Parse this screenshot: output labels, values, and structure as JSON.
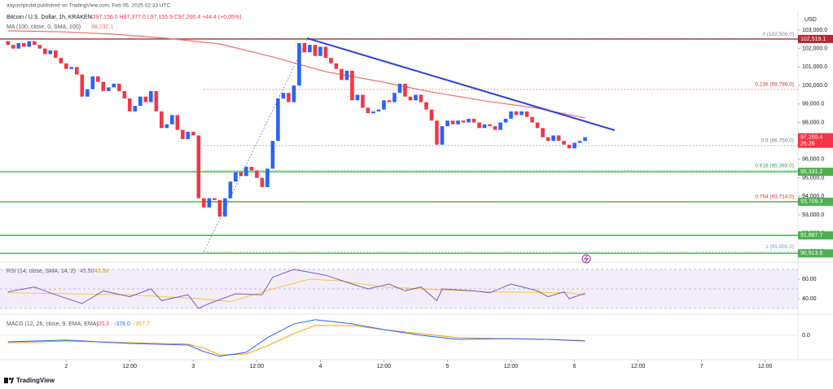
{
  "header": {
    "publisher": "aayushjindal published on TradingView.com, Feb 06, 2025 02:33 UTC",
    "symbol": "Bitcoin / U.S. Dollar, 1h, KRAKEN",
    "ohlc": "O97,156.0 H97,377.0 L97,155.9 C97,200.4 +44.4 (+0.05%)",
    "ma_label": "MA (100, close, 0, SMA, 100)",
    "ma_value": "98,232.1"
  },
  "chart_data": {
    "type": "candlestick",
    "currency": "USD",
    "xlim": [
      -1.5,
      149.2
    ],
    "xticks": [
      {
        "value": 11,
        "label": "2"
      },
      {
        "value": 23,
        "label": "12:00"
      },
      {
        "value": 35,
        "label": "3"
      },
      {
        "value": 47,
        "label": "12:00"
      },
      {
        "value": 59,
        "label": "4"
      },
      {
        "value": 71,
        "label": "12:00"
      },
      {
        "value": 83,
        "label": "5"
      },
      {
        "value": 95,
        "label": "12:00"
      },
      {
        "value": 107,
        "label": "6"
      },
      {
        "value": 119,
        "label": "12:00"
      },
      {
        "value": 131,
        "label": "7"
      },
      {
        "value": 143,
        "label": "12:00"
      }
    ],
    "ylim": [
      90500,
      104000
    ],
    "yticks": [
      {
        "value": 91000,
        "label": "91,000.0"
      },
      {
        "value": 92000,
        "label": "92,000.0"
      },
      {
        "value": 93000,
        "label": "93,000.0"
      },
      {
        "value": 94000,
        "label": "94,000.0"
      },
      {
        "value": 95000,
        "label": "95,000.0"
      },
      {
        "value": 96000,
        "label": "96,000.0"
      },
      {
        "value": 97000,
        "label": "97,000.0"
      },
      {
        "value": 98000,
        "label": "98,000.0"
      },
      {
        "value": 99000,
        "label": "99,000.0"
      },
      {
        "value": 100000,
        "label": "100,000.0"
      },
      {
        "value": 101000,
        "label": "101,000.0"
      },
      {
        "value": 102000,
        "label": "102,000.0"
      },
      {
        "value": 103000,
        "label": "103,000.0"
      }
    ],
    "up_color": "#2962ff",
    "down_color": "#f23645",
    "open": 102400,
    "close": [
      102200,
      102000,
      102300,
      102100,
      102400,
      102200,
      102000,
      101700,
      101900,
      101500,
      101200,
      100900,
      101000,
      100600,
      99400,
      99800,
      100500,
      100200,
      99700,
      99900,
      100100,
      99700,
      99300,
      98600,
      98900,
      99400,
      99100,
      99700,
      98600,
      97700,
      97900,
      98400,
      97600,
      97100,
      97500,
      97300,
      93900,
      93400,
      93900,
      93800,
      92900,
      93900,
      94800,
      95300,
      95100,
      95600,
      95400,
      95000,
      94500,
      95500,
      97000,
      99300,
      99600,
      99100,
      100000,
      102300,
      101800,
      102200,
      101600,
      102100,
      101500,
      101200,
      100900,
      100300,
      100800,
      99200,
      99500,
      98800,
      98500,
      98600,
      98700,
      99200,
      99100,
      99600,
      100100,
      99400,
      99200,
      99500,
      99100,
      98700,
      98100,
      96800,
      97800,
      98100,
      97900,
      98100,
      98000,
      98200,
      98000,
      97700,
      97900,
      97800,
      97600,
      98000,
      98200,
      98600,
      98400,
      98600,
      98300,
      98000,
      97700,
      97200,
      97000,
      97300,
      97000,
      96800,
      96600,
      96900,
      97000,
      97200.4
    ],
    "ma": {
      "color": "#f06d6d",
      "x": [
        0,
        10,
        20,
        30,
        40,
        50,
        60,
        70,
        80,
        90,
        100,
        109
      ],
      "values": [
        102960,
        102910,
        102780,
        102560,
        102250,
        101550,
        100750,
        100230,
        99650,
        99170,
        98770,
        98240
      ]
    },
    "trendline": {
      "color": "#2a3fd6",
      "x": [
        56.5,
        114.6
      ],
      "y": [
        102560,
        97580
      ]
    },
    "levels": [
      {
        "value": 102519.1,
        "label": "102,519.1",
        "color": "#b22833"
      },
      {
        "value": 95331.2,
        "label": "95,331.2",
        "color": "#4caf50"
      },
      {
        "value": 93709.3,
        "label": "93,709.3",
        "color": "#4caf50"
      },
      {
        "value": 91887.7,
        "label": "91,887.7",
        "color": "#4caf50"
      },
      {
        "value": 90913.6,
        "label": "90,913.6",
        "color": "#4caf50"
      }
    ],
    "last_price": {
      "value": 97200.4,
      "label": "97,200.4",
      "countdown": "26:26",
      "color": "#f23645"
    },
    "fib": {
      "x": [
        37,
        56.5
      ],
      "levels": [
        {
          "value": 102500,
          "label": "0 (102,500.0)",
          "color": "#787b86"
        },
        {
          "value": 99786,
          "label": "0.236 (99,786.0)",
          "color": "#c0392b"
        },
        {
          "value": 96750,
          "label": "0.5 (96,750.0)",
          "color": "#787b86"
        },
        {
          "value": 95393,
          "label": "0.618 (95,393.0)",
          "color": "#2e9e5b"
        },
        {
          "value": 93714,
          "label": "0.764 (93,714.0)",
          "color": "#d32f2f"
        },
        {
          "value": 91000,
          "label": "1 (91,000.0)",
          "color": "#5b9bd5"
        }
      ]
    },
    "rsi": {
      "label": "RSI (14, close, SMA, 14, 2)",
      "value_a": "45.50",
      "value_b": "43.58",
      "ylim": [
        25,
        75
      ],
      "yticks": [
        {
          "value": 60,
          "label": "60.00"
        },
        {
          "value": 40,
          "label": "40.00"
        }
      ],
      "band": [
        30,
        70
      ],
      "midline": 50,
      "rsi": {
        "color": "#7e57c2",
        "x": [
          0,
          5,
          9,
          14,
          18,
          23,
          27,
          29,
          34,
          36,
          38,
          43,
          48,
          50,
          54,
          57,
          60,
          65,
          68,
          72,
          75,
          78,
          81,
          82,
          88,
          91,
          95,
          100,
          102,
          105,
          106,
          109
        ],
        "values": [
          47,
          52,
          44,
          35,
          48,
          42,
          50,
          38,
          44,
          30,
          35,
          45,
          44,
          62,
          70,
          67,
          64,
          55,
          50,
          55,
          48,
          52,
          38,
          50,
          48,
          46,
          55,
          48,
          42,
          47,
          40,
          45.5
        ]
      },
      "ma": {
        "color": "#f5c542",
        "x": [
          0,
          23,
          36,
          42,
          50,
          57,
          63,
          71,
          82,
          91,
          106,
          109
        ],
        "values": [
          46,
          44,
          40,
          37,
          50,
          60,
          58,
          52,
          49,
          47,
          46,
          43.58
        ]
      }
    },
    "macd": {
      "label": "MACD (12, 26, close, 9, EMA, EMA)",
      "value_hist": "-20.3",
      "value_macd": "-378.0",
      "value_signal": "-357.7",
      "ylim": [
        -1512,
        1188
      ],
      "yticks": [
        {
          "value": 0,
          "label": "0.0"
        }
      ],
      "macd": {
        "color": "#2962ff",
        "x": [
          0,
          11,
          23,
          34,
          37,
          40,
          45,
          49,
          54,
          58,
          65,
          71,
          78,
          85,
          94,
          102,
          109
        ],
        "values": [
          -430,
          -320,
          -540,
          -650,
          -1080,
          -1400,
          -1130,
          -160,
          760,
          1030,
          760,
          380,
          0,
          -270,
          -220,
          -270,
          -378
        ]
      },
      "signal": {
        "color": "#ff9800",
        "x": [
          0,
          11,
          23,
          34,
          37,
          40,
          45,
          49,
          54,
          58,
          65,
          71,
          78,
          85,
          94,
          102,
          109
        ],
        "values": [
          -490,
          -380,
          -490,
          -590,
          -860,
          -1300,
          -1240,
          -700,
          110,
          650,
          650,
          380,
          110,
          -160,
          -220,
          -270,
          -357.7
        ]
      }
    }
  },
  "footer": {
    "brand": "TradingView"
  }
}
